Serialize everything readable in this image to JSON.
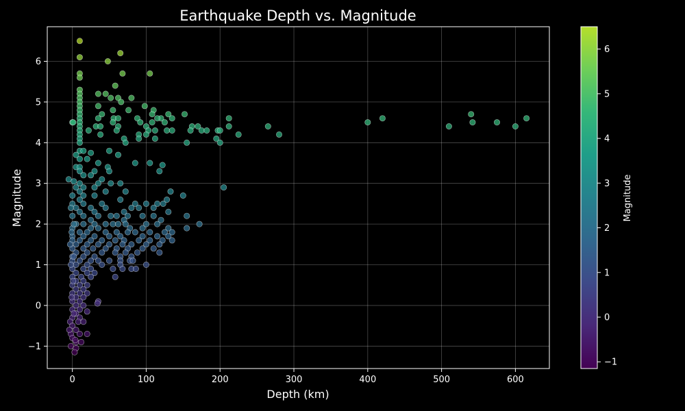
{
  "chart_data": {
    "type": "scatter",
    "title": "Earthquake Depth vs. Magnitude",
    "xlabel": "Depth (km)",
    "ylabel": "Magnitude",
    "xlim": [
      -34,
      646
    ],
    "ylim": [
      -1.55,
      6.85
    ],
    "xticks": [
      0,
      100,
      200,
      300,
      400,
      500,
      600
    ],
    "yticks": [
      -1,
      0,
      1,
      2,
      3,
      4,
      5,
      6
    ],
    "grid": true,
    "colorbar": {
      "label": "Magnitude",
      "colormap": "viridis",
      "range": [
        -1.15,
        6.5
      ],
      "ticks": [
        -1,
        0,
        1,
        2,
        3,
        4,
        5,
        6
      ]
    },
    "points": [
      [
        10,
        6.5
      ],
      [
        10,
        6.1
      ],
      [
        65,
        6.2
      ],
      [
        48,
        6.0
      ],
      [
        10,
        5.7
      ],
      [
        68,
        5.7
      ],
      [
        105,
        5.7
      ],
      [
        10,
        5.6
      ],
      [
        58,
        5.4
      ],
      [
        10,
        5.3
      ],
      [
        10,
        5.2
      ],
      [
        35,
        5.2
      ],
      [
        45,
        5.2
      ],
      [
        10,
        5.1
      ],
      [
        52,
        5.1
      ],
      [
        62,
        5.1
      ],
      [
        80,
        5.1
      ],
      [
        10,
        5.0
      ],
      [
        66,
        5.0
      ],
      [
        10,
        4.9
      ],
      [
        35,
        4.9
      ],
      [
        98,
        4.9
      ],
      [
        10,
        4.8
      ],
      [
        55,
        4.8
      ],
      [
        76,
        4.8
      ],
      [
        110,
        4.8
      ],
      [
        10,
        4.7
      ],
      [
        40,
        4.7
      ],
      [
        108,
        4.7
      ],
      [
        120,
        4.6
      ],
      [
        130,
        4.7
      ],
      [
        152,
        4.7
      ],
      [
        10,
        4.6
      ],
      [
        35,
        4.6
      ],
      [
        56,
        4.6
      ],
      [
        62,
        4.6
      ],
      [
        88,
        4.6
      ],
      [
        115,
        4.6
      ],
      [
        135,
        4.6
      ],
      [
        212,
        4.6
      ],
      [
        10,
        4.5
      ],
      [
        0,
        4.5
      ],
      [
        55,
        4.5
      ],
      [
        92,
        4.5
      ],
      [
        108,
        4.5
      ],
      [
        125,
        4.5
      ],
      [
        10,
        4.4
      ],
      [
        32,
        4.4
      ],
      [
        38,
        4.4
      ],
      [
        62,
        4.4
      ],
      [
        100,
        4.4
      ],
      [
        162,
        4.4
      ],
      [
        170,
        4.4
      ],
      [
        212,
        4.4
      ],
      [
        265,
        4.4
      ],
      [
        10,
        4.3
      ],
      [
        22,
        4.3
      ],
      [
        60,
        4.3
      ],
      [
        103,
        4.3
      ],
      [
        112,
        4.3
      ],
      [
        128,
        4.3
      ],
      [
        135,
        4.3
      ],
      [
        160,
        4.3
      ],
      [
        175,
        4.3
      ],
      [
        182,
        4.3
      ],
      [
        197,
        4.3
      ],
      [
        200,
        4.3
      ],
      [
        10,
        4.2
      ],
      [
        38,
        4.2
      ],
      [
        90,
        4.2
      ],
      [
        100,
        4.2
      ],
      [
        225,
        4.2
      ],
      [
        280,
        4.2
      ],
      [
        10,
        4.1
      ],
      [
        70,
        4.1
      ],
      [
        90,
        4.1
      ],
      [
        112,
        4.1
      ],
      [
        195,
        4.1
      ],
      [
        10,
        4.0
      ],
      [
        72,
        4.0
      ],
      [
        155,
        4.0
      ],
      [
        200,
        4.0
      ],
      [
        10,
        3.8
      ],
      [
        15,
        3.8
      ],
      [
        50,
        3.8
      ],
      [
        5,
        3.7
      ],
      [
        25,
        3.75
      ],
      [
        62,
        3.7
      ],
      [
        35,
        3.5
      ],
      [
        85,
        3.5
      ],
      [
        105,
        3.5
      ],
      [
        10,
        3.6
      ],
      [
        20,
        3.6
      ],
      [
        5,
        3.4
      ],
      [
        10,
        3.4
      ],
      [
        48,
        3.4
      ],
      [
        122,
        3.45
      ],
      [
        10,
        3.3
      ],
      [
        30,
        3.3
      ],
      [
        50,
        3.3
      ],
      [
        118,
        3.3
      ],
      [
        15,
        3.2
      ],
      [
        25,
        3.2
      ],
      [
        40,
        3.1
      ],
      [
        -5,
        3.1
      ],
      [
        10,
        3.0
      ],
      [
        35,
        3.0
      ],
      [
        52,
        3.0
      ],
      [
        65,
        3.0
      ],
      [
        205,
        2.9
      ],
      [
        5,
        2.9
      ],
      [
        15,
        2.9
      ],
      [
        30,
        2.9
      ],
      [
        10,
        2.8
      ],
      [
        45,
        2.8
      ],
      [
        72,
        2.8
      ],
      [
        133,
        2.8
      ],
      [
        0,
        2.7
      ],
      [
        15,
        2.7
      ],
      [
        30,
        2.7
      ],
      [
        65,
        2.6
      ],
      [
        150,
        2.7
      ],
      [
        10,
        2.6
      ],
      [
        40,
        2.5
      ],
      [
        85,
        2.5
      ],
      [
        100,
        2.5
      ],
      [
        115,
        2.5
      ],
      [
        123,
        2.5
      ],
      [
        128,
        2.6
      ],
      [
        0,
        2.5
      ],
      [
        15,
        2.5
      ],
      [
        5,
        2.4
      ],
      [
        25,
        2.4
      ],
      [
        45,
        2.4
      ],
      [
        70,
        2.3
      ],
      [
        80,
        2.4
      ],
      [
        90,
        2.4
      ],
      [
        110,
        2.4
      ],
      [
        130,
        2.3
      ],
      [
        10,
        2.3
      ],
      [
        30,
        2.3
      ],
      [
        0,
        2.2
      ],
      [
        15,
        2.2
      ],
      [
        35,
        2.2
      ],
      [
        52,
        2.2
      ],
      [
        60,
        2.2
      ],
      [
        75,
        2.2
      ],
      [
        95,
        2.2
      ],
      [
        110,
        2.2
      ],
      [
        155,
        2.2
      ],
      [
        25,
        2.1
      ],
      [
        70,
        2.1
      ],
      [
        120,
        2.1
      ],
      [
        5,
        2.0
      ],
      [
        15,
        2.0
      ],
      [
        30,
        2.0
      ],
      [
        45,
        2.0
      ],
      [
        55,
        2.0
      ],
      [
        62,
        2.0
      ],
      [
        72,
        2.0
      ],
      [
        100,
        2.0
      ],
      [
        115,
        2.0
      ],
      [
        172,
        2.0
      ],
      [
        0,
        1.9
      ],
      [
        25,
        1.9
      ],
      [
        35,
        1.9
      ],
      [
        78,
        1.9
      ],
      [
        95,
        1.9
      ],
      [
        130,
        1.9
      ],
      [
        155,
        1.9
      ],
      [
        10,
        1.8
      ],
      [
        20,
        1.8
      ],
      [
        45,
        1.8
      ],
      [
        60,
        1.8
      ],
      [
        75,
        1.8
      ],
      [
        85,
        1.8
      ],
      [
        105,
        1.8
      ],
      [
        125,
        1.8
      ],
      [
        135,
        1.8
      ],
      [
        0,
        1.7
      ],
      [
        15,
        1.7
      ],
      [
        30,
        1.7
      ],
      [
        50,
        1.7
      ],
      [
        65,
        1.7
      ],
      [
        95,
        1.7
      ],
      [
        115,
        1.7
      ],
      [
        130,
        1.7
      ],
      [
        0,
        1.6
      ],
      [
        10,
        1.6
      ],
      [
        25,
        1.6
      ],
      [
        40,
        1.6
      ],
      [
        58,
        1.6
      ],
      [
        70,
        1.6
      ],
      [
        90,
        1.6
      ],
      [
        105,
        1.6
      ],
      [
        122,
        1.6
      ],
      [
        135,
        1.6
      ],
      [
        5,
        1.5
      ],
      [
        20,
        1.5
      ],
      [
        35,
        1.5
      ],
      [
        50,
        1.5
      ],
      [
        68,
        1.5
      ],
      [
        80,
        1.5
      ],
      [
        100,
        1.5
      ],
      [
        118,
        1.5
      ],
      [
        0,
        1.4
      ],
      [
        15,
        1.4
      ],
      [
        28,
        1.4
      ],
      [
        45,
        1.4
      ],
      [
        60,
        1.4
      ],
      [
        75,
        1.4
      ],
      [
        95,
        1.4
      ],
      [
        110,
        1.4
      ],
      [
        5,
        1.3
      ],
      [
        20,
        1.3
      ],
      [
        40,
        1.3
      ],
      [
        58,
        1.3
      ],
      [
        72,
        1.3
      ],
      [
        88,
        1.3
      ],
      [
        118,
        1.3
      ],
      [
        0,
        1.2
      ],
      [
        15,
        1.2
      ],
      [
        30,
        1.2
      ],
      [
        65,
        1.2
      ],
      [
        80,
        1.2
      ],
      [
        0,
        1.1
      ],
      [
        10,
        1.1
      ],
      [
        25,
        1.1
      ],
      [
        35,
        1.1
      ],
      [
        50,
        1.1
      ],
      [
        65,
        1.1
      ],
      [
        78,
        1.1
      ],
      [
        82,
        1.1
      ],
      [
        5,
        1.0
      ],
      [
        20,
        1.0
      ],
      [
        40,
        1.0
      ],
      [
        65,
        1.0
      ],
      [
        100,
        1.0
      ],
      [
        0,
        0.9
      ],
      [
        15,
        0.9
      ],
      [
        25,
        0.9
      ],
      [
        55,
        0.9
      ],
      [
        68,
        0.9
      ],
      [
        80,
        0.9
      ],
      [
        86,
        0.9
      ],
      [
        5,
        0.8
      ],
      [
        20,
        0.8
      ],
      [
        30,
        0.8
      ],
      [
        0,
        0.7
      ],
      [
        12,
        0.7
      ],
      [
        25,
        0.7
      ],
      [
        58,
        0.7
      ],
      [
        5,
        0.6
      ],
      [
        15,
        0.6
      ],
      [
        0,
        0.5
      ],
      [
        10,
        0.5
      ],
      [
        20,
        0.5
      ],
      [
        5,
        0.4
      ],
      [
        15,
        0.4
      ],
      [
        0,
        0.3
      ],
      [
        10,
        0.3
      ],
      [
        20,
        0.3
      ],
      [
        5,
        0.2
      ],
      [
        15,
        0.2
      ],
      [
        0,
        0.1
      ],
      [
        10,
        0.1
      ],
      [
        35,
        0.1
      ],
      [
        34,
        0.05
      ],
      [
        5,
        0.0
      ],
      [
        15,
        0.0
      ],
      [
        0,
        -0.1
      ],
      [
        10,
        -0.1
      ],
      [
        20,
        -0.15
      ],
      [
        5,
        -0.2
      ],
      [
        0,
        -0.3
      ],
      [
        10,
        -0.3
      ],
      [
        -3,
        -0.4
      ],
      [
        8,
        -0.4
      ],
      [
        15,
        -0.4
      ],
      [
        0,
        -0.5
      ],
      [
        5,
        -0.6
      ],
      [
        -2,
        -0.7
      ],
      [
        10,
        -0.7
      ],
      [
        20,
        -0.7
      ],
      [
        0,
        -0.8
      ],
      [
        5,
        -0.9
      ],
      [
        12,
        -0.9
      ],
      [
        -2,
        -1.0
      ],
      [
        5,
        -1.05
      ],
      [
        3,
        -1.15
      ],
      [
        1,
        4.5
      ],
      [
        2,
        3.05
      ],
      [
        -2,
        2.4
      ],
      [
        2,
        2.0
      ],
      [
        -3,
        1.5
      ],
      [
        -1,
        1.8
      ],
      [
        2,
        1.2
      ],
      [
        -2,
        1.0
      ],
      [
        1,
        0.6
      ],
      [
        -1,
        0.2
      ],
      [
        2,
        -0.2
      ],
      [
        -4,
        -0.6
      ],
      [
        4,
        -0.85
      ]
    ],
    "far_points": [
      [
        400,
        4.5
      ],
      [
        420,
        4.6
      ],
      [
        510,
        4.4
      ],
      [
        540,
        4.7
      ],
      [
        542,
        4.5
      ],
      [
        575,
        4.5
      ],
      [
        600,
        4.4
      ],
      [
        615,
        4.6
      ]
    ]
  }
}
